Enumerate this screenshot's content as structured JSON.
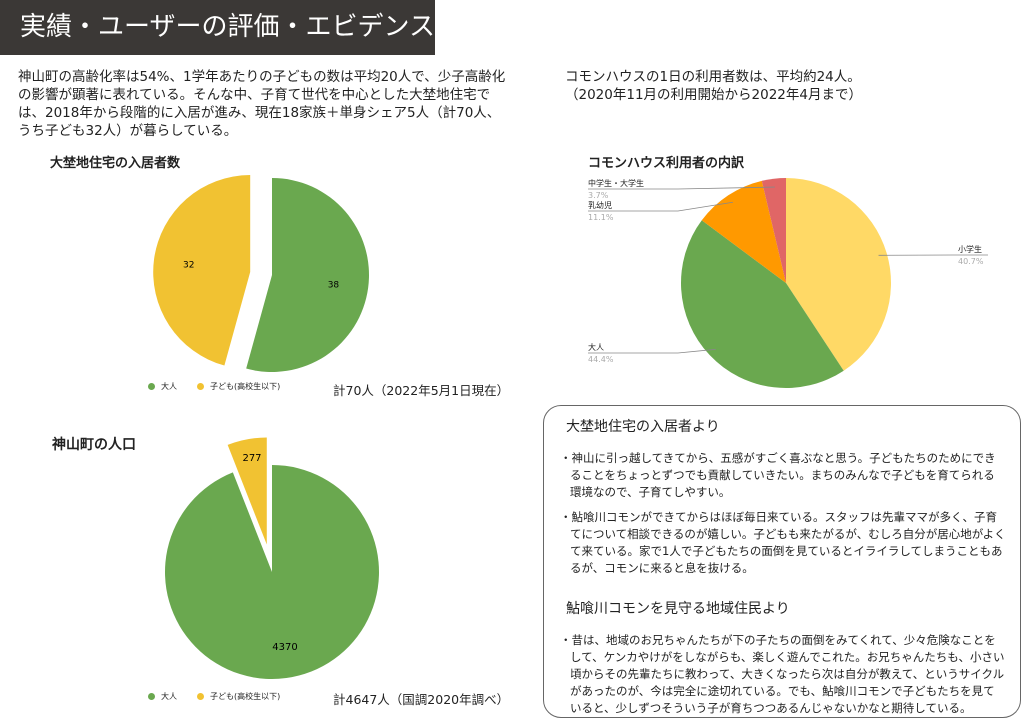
{
  "header": {
    "title": "実績・ユーザーの評価・エビデンス"
  },
  "intro_left": "神山町の高齢化率は54%、1学年あたりの子どもの数は平均20人で、少子高齢化の影響が顕著に表れている。そんな中、子育て世代を中心とした大埜地住宅では、2018年から段階的に入居が進み、現在18家族＋単身シェア5人（計70人、うち子ども32人）が暮らしている。",
  "intro_right": "コモンハウスの1日の利用者数は、平均約24人。\n（2020年11月の利用開始から2022年4月まで）",
  "chart_data": [
    {
      "type": "pie",
      "title": "大埜地住宅の入居者数",
      "categories": [
        "大人",
        "子ども(高校生以下)"
      ],
      "values": [
        38,
        32
      ],
      "colors": [
        "#6aa84f",
        "#f1c232"
      ],
      "legend": [
        "大人",
        "子ども(高校生以下)"
      ],
      "legend_position": "bottom",
      "note": "計70人（2022年5月1日現在）"
    },
    {
      "type": "pie",
      "title": "神山町の人口",
      "categories": [
        "大人",
        "子ども(高校生以下)"
      ],
      "values": [
        4370,
        277
      ],
      "colors": [
        "#6aa84f",
        "#f1c232"
      ],
      "legend": [
        "大人",
        "子ども(高校生以下)"
      ],
      "legend_position": "bottom",
      "note": "計4647人（国調2020年調べ）"
    },
    {
      "type": "pie",
      "title": "コモンハウス利用者の内訳",
      "categories": [
        "小学生",
        "大人",
        "乳幼児",
        "中学生・大学生"
      ],
      "values": [
        40.7,
        44.4,
        11.1,
        3.7
      ],
      "labels": [
        "40.7%",
        "44.4%",
        "11.1%",
        "3.7%"
      ],
      "colors": [
        "#ffd966",
        "#6aa84f",
        "#ff9900",
        "#e06666"
      ]
    }
  ],
  "box": {
    "heading1": "大埜地住宅の入居者より",
    "quote1": "・神山に引っ越してきてから、五感がすごく喜ぶなと思う。子どもたちのためにできることをちょっとずつでも貢献していきたい。まちのみんなで子どもを育てられる環境なので、子育てしやすい。",
    "quote2": "・鮎喰川コモンができてからはほぼ毎日来ている。スタッフは先輩ママが多く、子育てについて相談できるのが嬉しい。子どもも来たがるが、むしろ自分が居心地がよくて来ている。家で1人で子どもたちの面倒を見ているとイライラしてしまうこともあるが、コモンに来ると息を抜ける。",
    "heading2": "鮎喰川コモンを見守る地域住民より",
    "quote3": "・昔は、地域のお兄ちゃんたちが下の子たちの面倒をみてくれて、少々危険なことをして、ケンカやけがをしながらも、楽しく遊んでこれた。お兄ちゃんたちも、小さい頃からその先輩たちに教わって、大きくなったら次は自分が教えて、というサイクルがあったのが、今は完全に途切れている。でも、鮎喰川コモンで子どもたちを見ていると、少しずつそういう子が育ちつつあるんじゃないかなと期待している。"
  }
}
